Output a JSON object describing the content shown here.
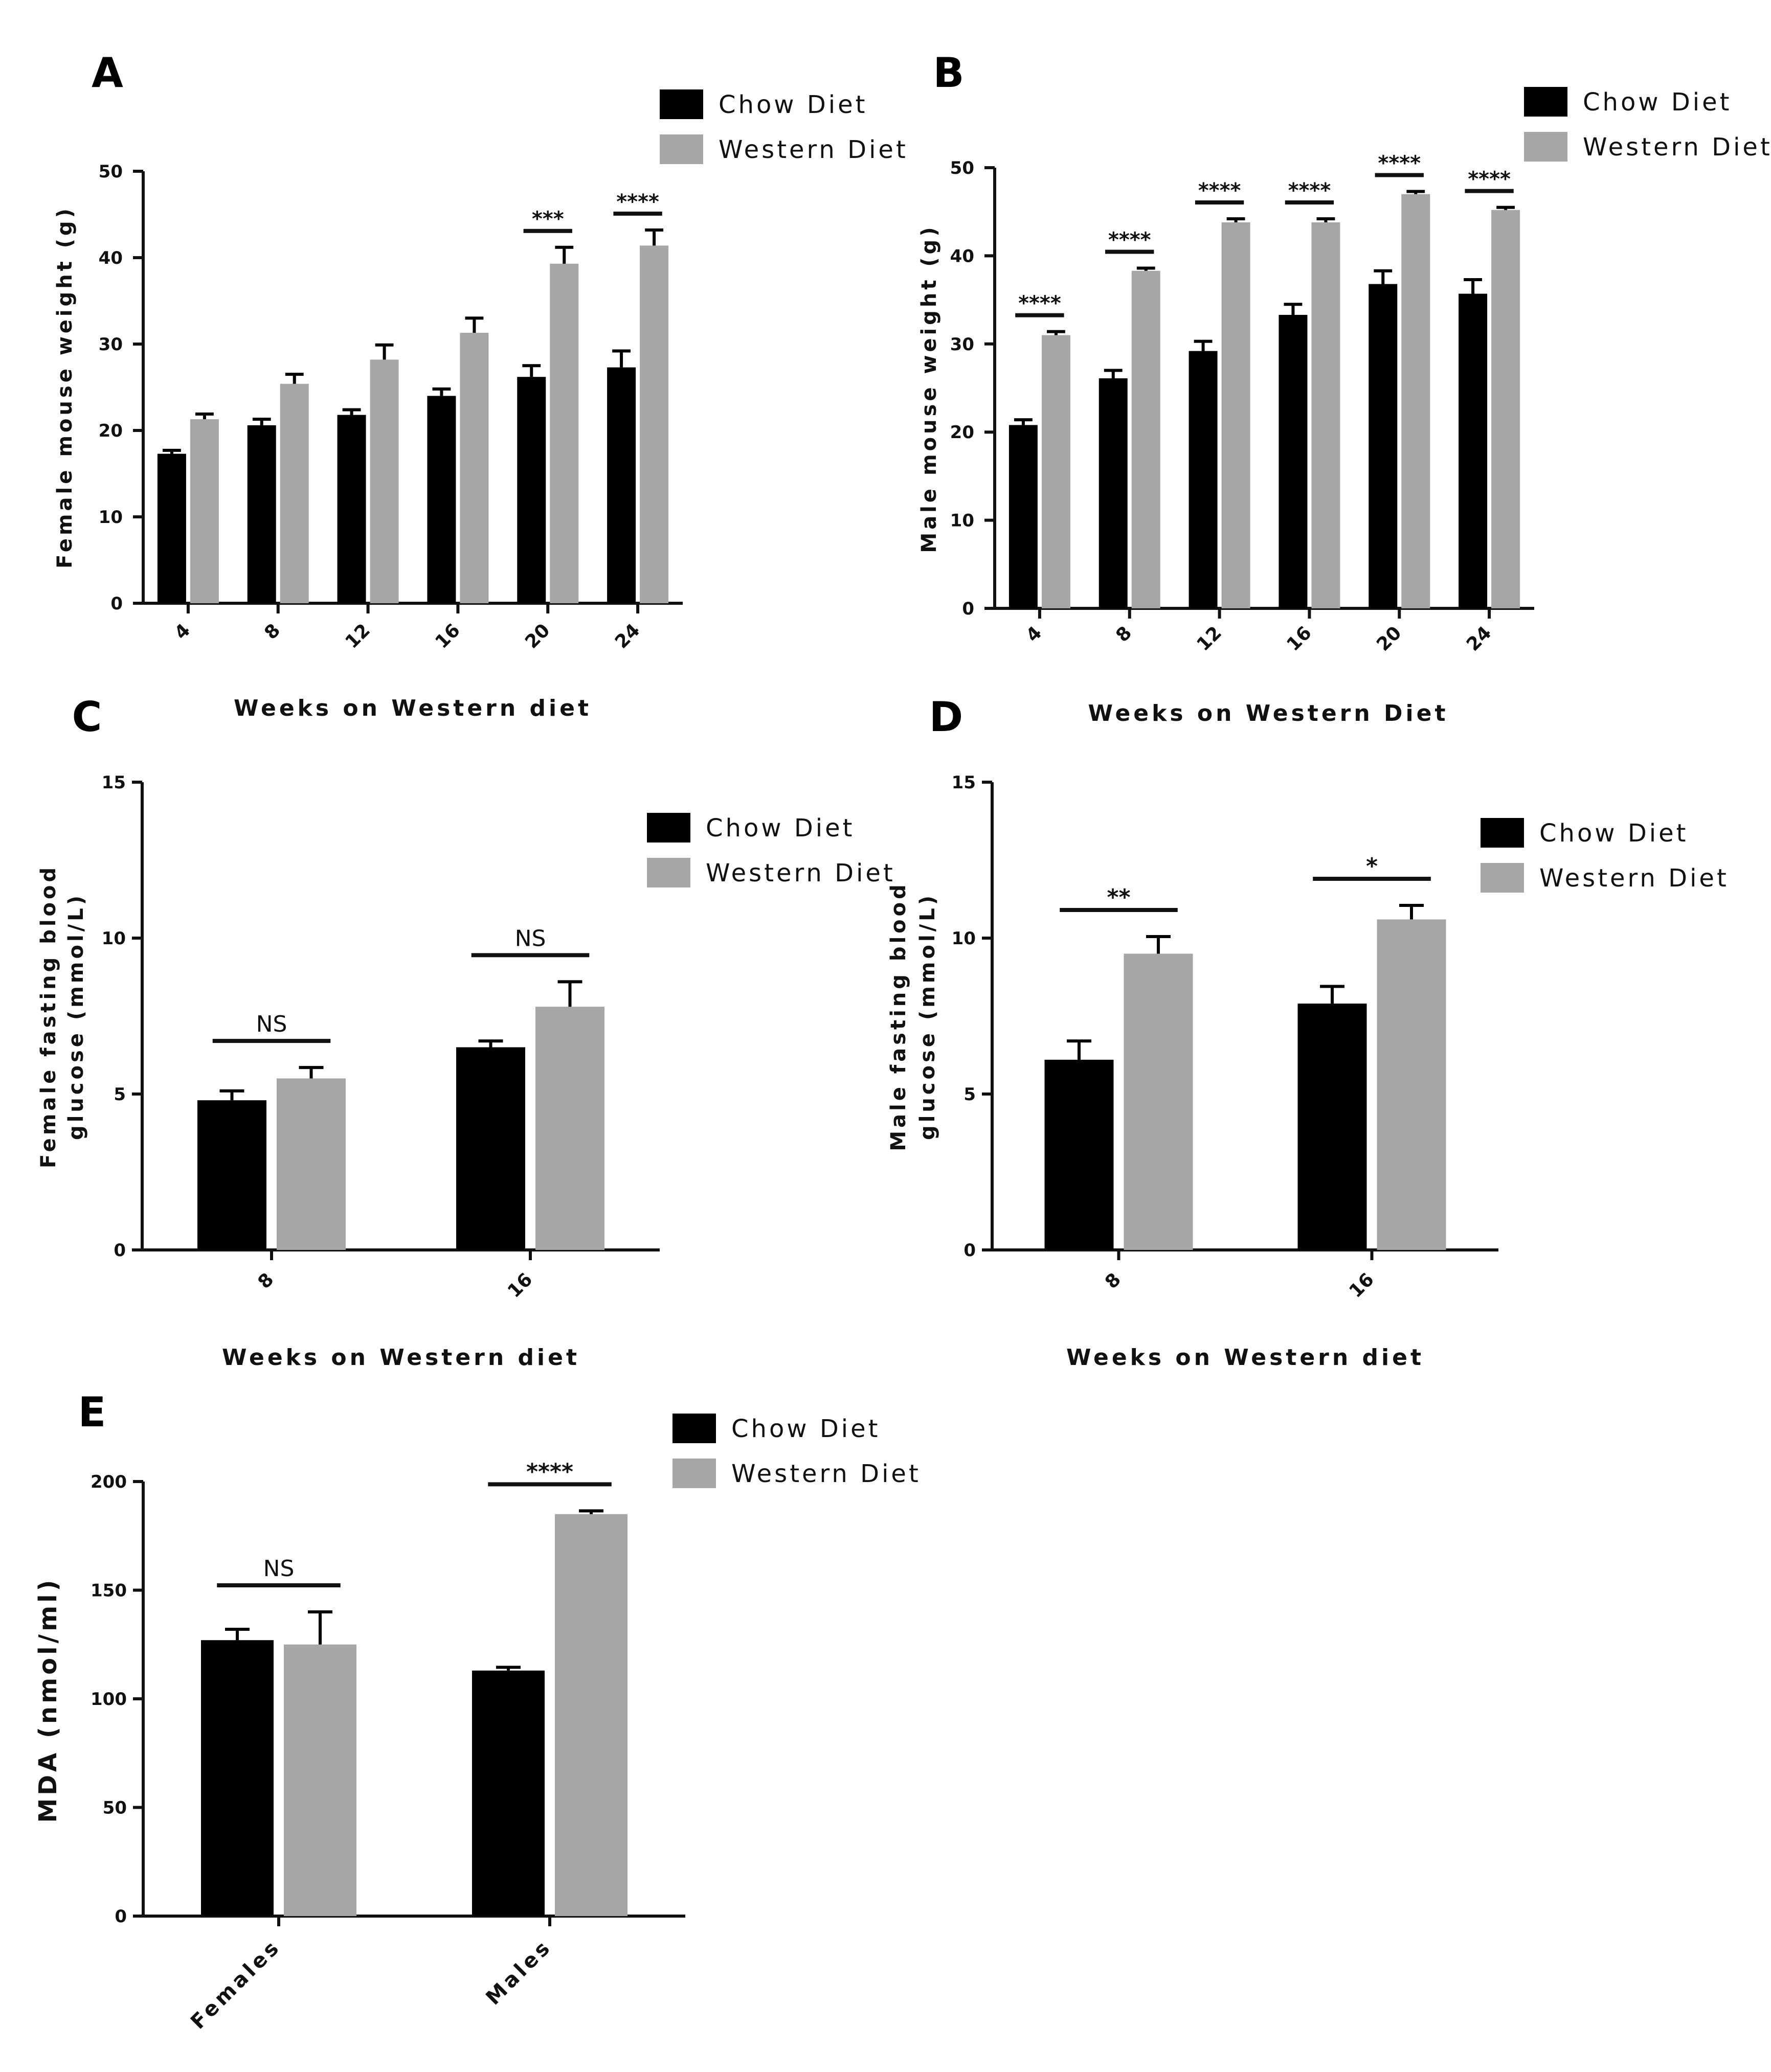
{
  "colors": {
    "chow": "#000000",
    "western": "#a6a6a8",
    "axis": "#111111"
  },
  "chart_data": [
    {
      "panel": "A",
      "type": "bar",
      "ylabel": "Female mouse weight (g)",
      "xlabel": "Weeks on Western diet",
      "ylim": [
        0,
        50
      ],
      "yticks": [
        0,
        10,
        20,
        30,
        40,
        50
      ],
      "categories": [
        "4",
        "8",
        "12",
        "16",
        "20",
        "24"
      ],
      "series": [
        {
          "name": "Chow Diet",
          "values": [
            17.3,
            20.6,
            21.8,
            24.0,
            26.2,
            27.3
          ],
          "errors": [
            0.4,
            0.7,
            0.6,
            0.8,
            1.3,
            1.9
          ]
        },
        {
          "name": "Western Diet",
          "values": [
            21.3,
            25.4,
            28.2,
            31.3,
            39.3,
            41.4
          ],
          "errors": [
            0.6,
            1.1,
            1.7,
            1.7,
            1.9,
            1.8
          ]
        }
      ],
      "significance": [
        {
          "category": "20",
          "label": "***"
        },
        {
          "category": "24",
          "label": "****"
        }
      ]
    },
    {
      "panel": "B",
      "type": "bar",
      "ylabel": "Male mouse weight (g)",
      "xlabel": "Weeks on Western Diet",
      "ylim": [
        0,
        50
      ],
      "yticks": [
        0,
        10,
        20,
        30,
        40,
        50
      ],
      "categories": [
        "4",
        "8",
        "12",
        "16",
        "20",
        "24"
      ],
      "series": [
        {
          "name": "Chow Diet",
          "values": [
            20.8,
            26.1,
            29.2,
            33.3,
            36.8,
            35.7
          ],
          "errors": [
            0.6,
            0.9,
            1.1,
            1.2,
            1.5,
            1.6
          ]
        },
        {
          "name": "Western Diet",
          "values": [
            31.0,
            38.3,
            43.8,
            43.8,
            47.0,
            45.2
          ],
          "errors": [
            0.4,
            0.3,
            0.4,
            0.4,
            0.3,
            0.3
          ]
        }
      ],
      "significance": [
        {
          "category": "4",
          "label": "****"
        },
        {
          "category": "8",
          "label": "****"
        },
        {
          "category": "12",
          "label": "****"
        },
        {
          "category": "16",
          "label": "****"
        },
        {
          "category": "20",
          "label": "****"
        },
        {
          "category": "24",
          "label": "****"
        }
      ]
    },
    {
      "panel": "C",
      "type": "bar",
      "ylabel_lines": [
        "Female fasting blood",
        "glucose  (mmol/L)"
      ],
      "xlabel": "Weeks on Western diet",
      "ylim": [
        0,
        15
      ],
      "yticks": [
        0,
        5,
        10,
        15
      ],
      "categories": [
        "8",
        "16"
      ],
      "series": [
        {
          "name": "Chow Diet",
          "values": [
            4.8,
            6.5
          ],
          "errors": [
            0.3,
            0.2
          ]
        },
        {
          "name": "Western Diet",
          "values": [
            5.5,
            7.8
          ],
          "errors": [
            0.35,
            0.8
          ]
        }
      ],
      "significance": [
        {
          "category": "8",
          "label": "NS"
        },
        {
          "category": "16",
          "label": "NS"
        }
      ]
    },
    {
      "panel": "D",
      "type": "bar",
      "ylabel_lines": [
        "Male fasting blood",
        "glucose  (mmol/L)"
      ],
      "xlabel": "Weeks on Western diet",
      "ylim": [
        0,
        15
      ],
      "yticks": [
        0,
        5,
        10,
        15
      ],
      "categories": [
        "8",
        "16"
      ],
      "series": [
        {
          "name": "Chow Diet",
          "values": [
            6.1,
            7.9
          ],
          "errors": [
            0.6,
            0.55
          ]
        },
        {
          "name": "Western Diet",
          "values": [
            9.5,
            10.6
          ],
          "errors": [
            0.55,
            0.45
          ]
        }
      ],
      "significance": [
        {
          "category": "8",
          "label": "**"
        },
        {
          "category": "16",
          "label": "*"
        }
      ]
    },
    {
      "panel": "E",
      "type": "bar",
      "ylabel": "MDA (nmol/ml)",
      "xlabel": "",
      "ylim": [
        0,
        200
      ],
      "yticks": [
        0,
        50,
        100,
        150,
        200
      ],
      "categories": [
        "Females",
        "Males"
      ],
      "series": [
        {
          "name": "Chow Diet",
          "values": [
            127,
            113
          ],
          "errors": [
            5,
            1.5
          ]
        },
        {
          "name": "Western Diet",
          "values": [
            125,
            185
          ],
          "errors": [
            15,
            1.5
          ]
        }
      ],
      "significance": [
        {
          "category": "Females",
          "label": "NS"
        },
        {
          "category": "Males",
          "label": "****"
        }
      ]
    }
  ]
}
